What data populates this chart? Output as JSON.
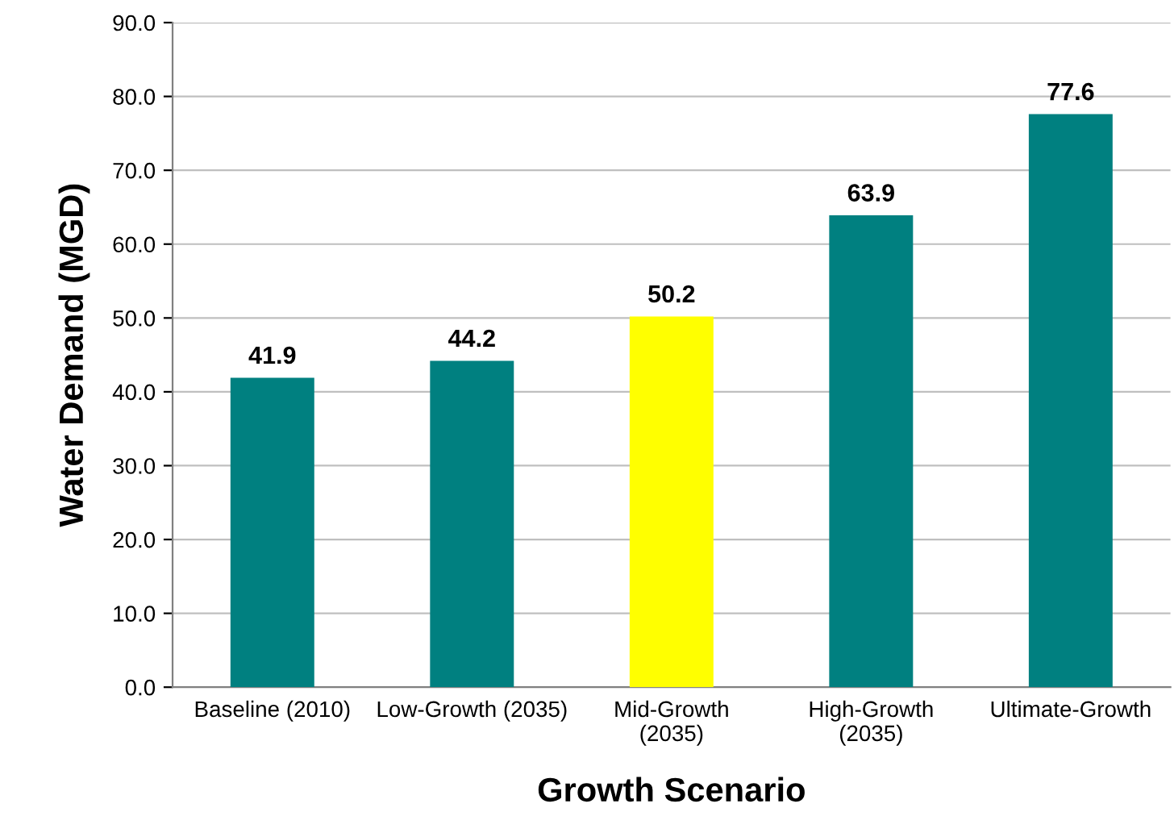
{
  "chart_data": {
    "type": "bar",
    "xlabel": "Growth Scenario",
    "ylabel": "Water Demand (MGD)",
    "categories": [
      "Baseline (2010)",
      "Low-Growth (2035)",
      "Mid-Growth\n(2035)",
      "High-Growth\n(2035)",
      "Ultimate-Growth"
    ],
    "values": [
      41.9,
      44.2,
      50.2,
      63.9,
      77.6
    ],
    "colors": [
      "#008080",
      "#008080",
      "#ffff00",
      "#008080",
      "#008080"
    ],
    "ylim": [
      0,
      90
    ],
    "yticks": [
      {
        "value": 0,
        "label": "0.0"
      },
      {
        "value": 10,
        "label": "10.0"
      },
      {
        "value": 20,
        "label": "20.0"
      },
      {
        "value": 30,
        "label": "30.0"
      },
      {
        "value": 40,
        "label": "40.0"
      },
      {
        "value": 50,
        "label": "50.0"
      },
      {
        "value": 60,
        "label": "60.0"
      },
      {
        "value": 70,
        "label": "70.0"
      },
      {
        "value": 80,
        "label": "80.0"
      },
      {
        "value": 90,
        "label": "90.0"
      }
    ],
    "grid": "y",
    "data_labels": true,
    "legend": false
  }
}
